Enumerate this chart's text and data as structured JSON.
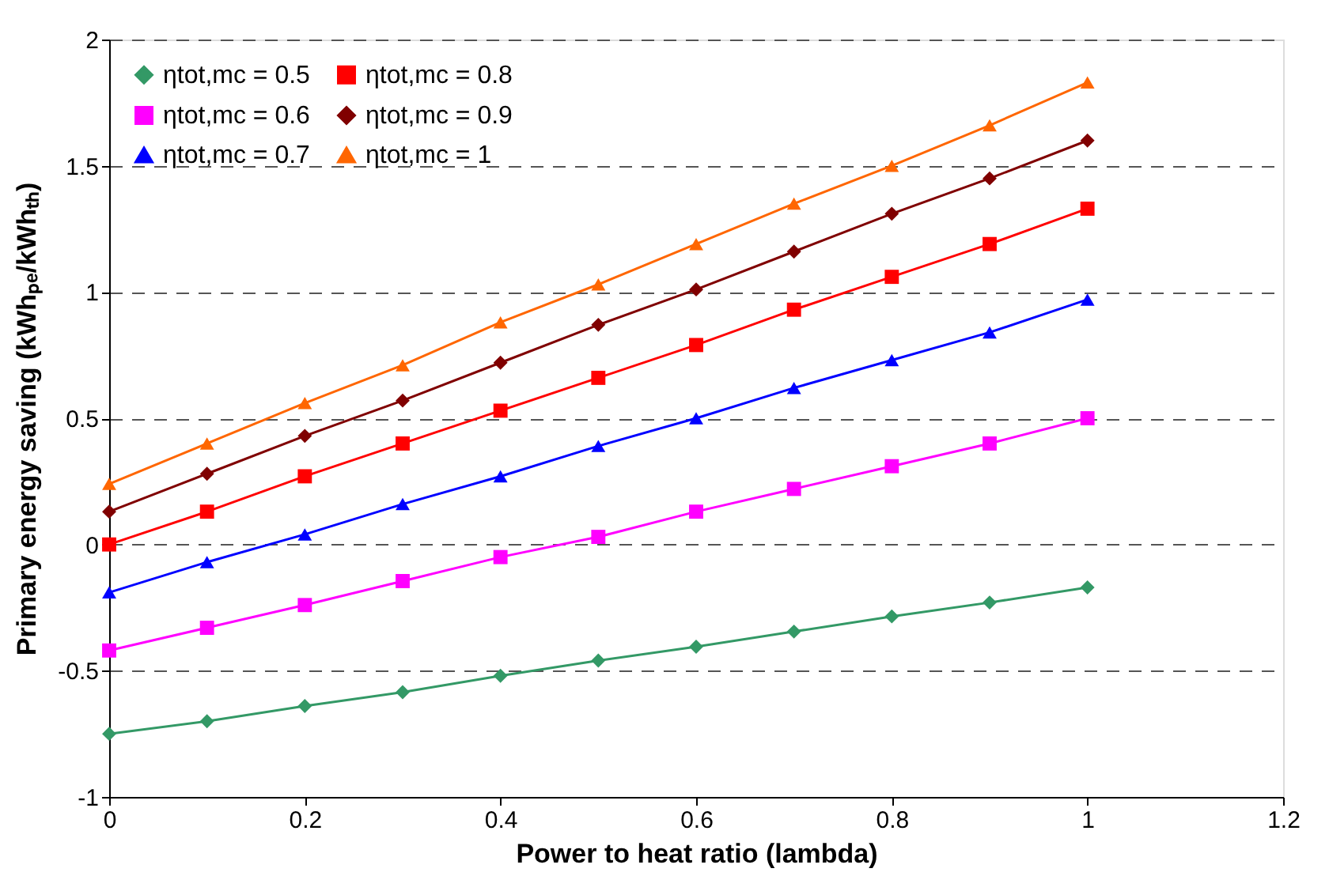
{
  "chart_data": {
    "type": "line",
    "xlabel": "Power to heat ratio (lambda)",
    "ylabel": "Primary energy saving (kWhₚₑ/kWhₜₕ)",
    "x": [
      0,
      0.1,
      0.2,
      0.3,
      0.4,
      0.5,
      0.6,
      0.7,
      0.8,
      0.9,
      1
    ],
    "series": [
      {
        "name": "ηtot,mc = 0.5",
        "color": "#339966",
        "marker": "diamond",
        "values": [
          -0.75,
          -0.7,
          -0.64,
          -0.585,
          -0.52,
          -0.46,
          -0.405,
          -0.345,
          -0.285,
          -0.23,
          -0.17
        ]
      },
      {
        "name": "ηtot,mc = 0.6",
        "color": "#ff00ff",
        "marker": "square",
        "values": [
          -0.42,
          -0.33,
          -0.24,
          -0.145,
          -0.05,
          0.03,
          0.13,
          0.22,
          0.31,
          0.4,
          0.5
        ]
      },
      {
        "name": "ηtot,mc = 0.7",
        "color": "#0000ff",
        "marker": "triangle",
        "values": [
          -0.19,
          -0.07,
          0.04,
          0.16,
          0.27,
          0.39,
          0.5,
          0.62,
          0.73,
          0.84,
          0.97
        ]
      },
      {
        "name": "ηtot,mc = 0.8",
        "color": "#ff0000",
        "marker": "square",
        "values": [
          0.0,
          0.13,
          0.27,
          0.4,
          0.53,
          0.66,
          0.79,
          0.93,
          1.06,
          1.19,
          1.33
        ]
      },
      {
        "name": "ηtot,mc = 0.9",
        "color": "#800000",
        "marker": "diamond",
        "values": [
          0.13,
          0.28,
          0.43,
          0.57,
          0.72,
          0.87,
          1.01,
          1.16,
          1.31,
          1.45,
          1.6
        ]
      },
      {
        "name": "ηtot,mc = 1",
        "color": "#ff6600",
        "marker": "triangle",
        "values": [
          0.24,
          0.4,
          0.56,
          0.71,
          0.88,
          1.03,
          1.19,
          1.35,
          1.5,
          1.66,
          1.83
        ]
      }
    ],
    "xlim": [
      0,
      1.2
    ],
    "xticks": [
      0,
      0.2,
      0.4,
      0.6,
      0.8,
      1,
      1.2
    ],
    "ylim": [
      -1,
      2
    ],
    "yticks": [
      -1,
      -0.5,
      0,
      0.5,
      1,
      1.5,
      2
    ],
    "grid": "y",
    "legend": "top left",
    "line_style": "solid"
  }
}
